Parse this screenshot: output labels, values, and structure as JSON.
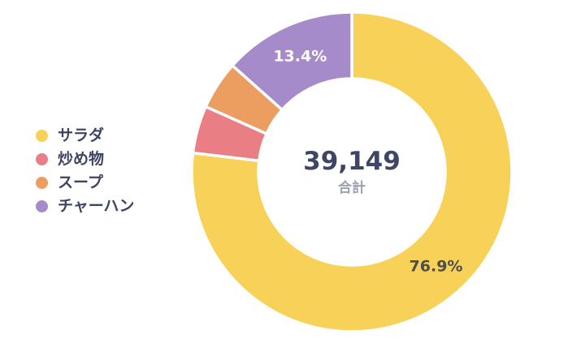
{
  "page": {
    "background": "#ffffff"
  },
  "chart_data": {
    "type": "pie",
    "subtype": "donut",
    "title": "",
    "legend_position": "left",
    "start_angle_deg": 0,
    "direction": "clockwise",
    "total_value": "39,149",
    "total_label": "合計",
    "categories": [
      "サラダ",
      "炒め物",
      "スープ",
      "チャーハン"
    ],
    "values_percent": [
      76.9,
      4.8,
      4.9,
      13.4
    ],
    "segments": [
      {
        "label": "サラダ",
        "percent": 76.9,
        "color": "#F7D158",
        "data_label": "76.9%",
        "data_label_color": "#4D4D4D",
        "show_label": true
      },
      {
        "label": "炒め物",
        "percent": 4.8,
        "color": "#E97F84",
        "data_label": "",
        "data_label_color": "#ffffff",
        "show_label": false
      },
      {
        "label": "スープ",
        "percent": 4.9,
        "color": "#EC9D60",
        "data_label": "",
        "data_label_color": "#ffffff",
        "show_label": false
      },
      {
        "label": "チャーハン",
        "percent": 13.4,
        "color": "#A58BC9",
        "data_label": "13.4%",
        "data_label_color": "#ffffff",
        "show_label": true
      }
    ],
    "colors": {
      "center_value_text": "#3E4566",
      "center_label_text": "#9CA2AF",
      "legend_text": "#3E4462",
      "segment_gap_stroke": "#ffffff"
    }
  }
}
